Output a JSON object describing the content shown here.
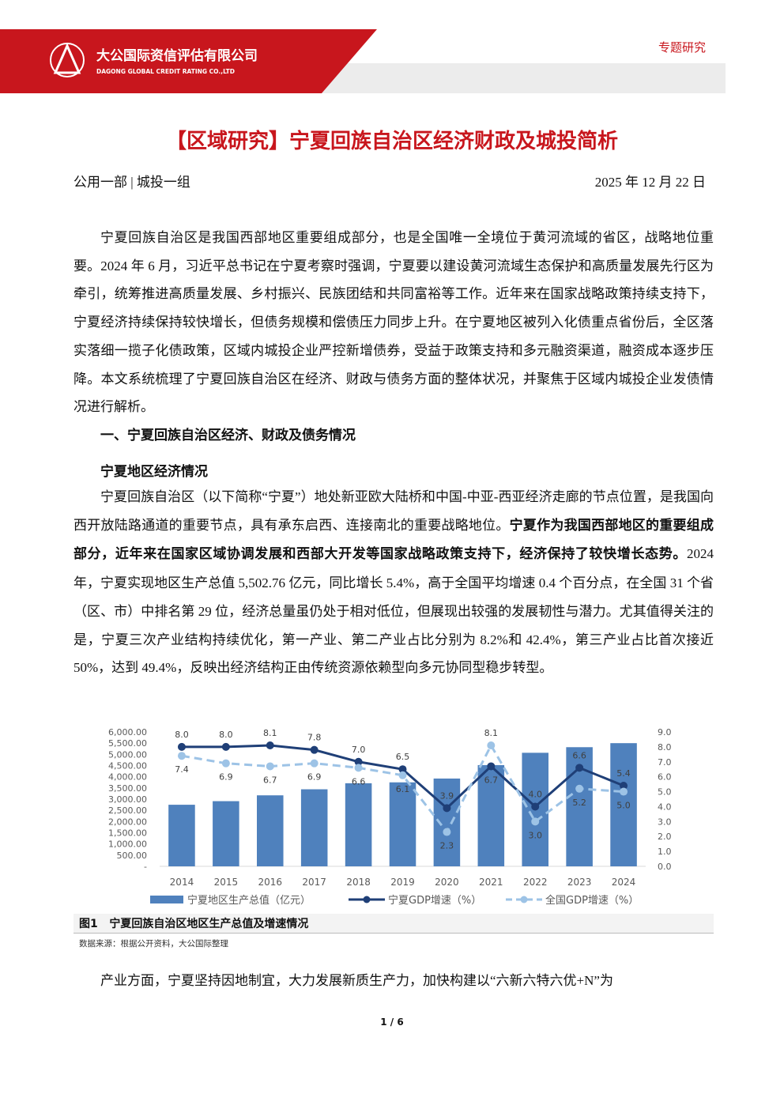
{
  "header": {
    "company_cn": "大公国际资信评估有限公司",
    "company_en": "DAGONG GLOBAL CREDIT RATING CO.,LTD",
    "tag": "专题研究"
  },
  "title": "【区域研究】宁夏回族自治区经济财政及城投简析",
  "meta": {
    "department": "公用一部 | 城投一组",
    "date": "2025 年 12 月 22 日"
  },
  "intro": "宁夏回族自治区是我国西部地区重要组成部分，也是全国唯一全境位于黄河流域的省区，战略地位重要。2024 年 6 月，习近平总书记在宁夏考察时强调，宁夏要以建设黄河流域生态保护和高质量发展先行区为牵引，统筹推进高质量发展、乡村振兴、民族团结和共同富裕等工作。近年来在国家战略政策持续支持下，宁夏经济持续保持较快增长，但债务规模和偿债压力同步上升。在宁夏地区被列入化债重点省份后，全区落实落细一揽子化债政策，区域内城投企业严控新增债券，受益于政策支持和多元融资渠道，融资成本逐步压降。本文系统梳理了宁夏回族自治区在经济、财政与债务方面的整体状况，并聚焦于区域内城投企业发债情况进行解析。",
  "section1": {
    "heading": "一、宁夏回族自治区经济、财政及债务情况",
    "subheading": "宁夏地区经济情况",
    "paragraph": [
      "宁夏回族自治区（以下简称“宁夏”）地处新亚欧大陆桥和中国-中亚-西亚经济走廊的节点位置，是我国向西开放陆路通道的重要节点，具有承东启西、连接南北的重要战略地位。",
      "宁夏作为我国西部地区的重要组成部分，近年来在国家区域协调发展和西部大开发等国家战略政策支持下，经济保持了较快增长态势。",
      "2024 年，宁夏实现地区生产总值 5,502.76 亿元，同比增长 5.4%，高于全国平均增速 0.4 个百分点，在全国 31 个省（区、市）中排名第 29 位，经济总量虽仍处于相对低位，但展现出较强的发展韧性与潜力。尤其值得关注的是，宁夏三次产业结构持续优化，第一产业、第二产业占比分别为 8.2%和 42.4%，第三产业占比首次接近 50%，达到 49.4%，反映出经济结构正由传统资源依赖型向多元协同型稳步转型。"
    ]
  },
  "chart_data": {
    "type": "combo",
    "categories": [
      "2014",
      "2015",
      "2016",
      "2017",
      "2018",
      "2019",
      "2020",
      "2021",
      "2022",
      "2023",
      "2024"
    ],
    "series": [
      {
        "name": "宁夏地区生产总值（亿元）",
        "type": "bar",
        "color": "#4f81bd",
        "values": [
          2750,
          2910,
          3170,
          3440,
          3710,
          3750,
          3920,
          4520,
          5070,
          5320,
          5500
        ]
      },
      {
        "name": "宁夏GDP增速（%）",
        "type": "line",
        "axis": "y2",
        "color": "#1f3f77",
        "dashed": false,
        "values": [
          8.0,
          8.0,
          8.1,
          7.8,
          7.0,
          6.5,
          3.9,
          6.7,
          4.0,
          6.6,
          5.4
        ],
        "value_labels": [
          "8.0",
          "8.0",
          "8.1",
          "7.8",
          "7.0",
          "6.5",
          "3.9",
          "6.7",
          "4.0",
          "6.6",
          "5.4"
        ]
      },
      {
        "name": "全国GDP增速（%）",
        "type": "line",
        "axis": "y2",
        "color": "#9dc3e6",
        "dashed": true,
        "values": [
          7.4,
          6.9,
          6.7,
          6.9,
          6.6,
          6.1,
          2.3,
          8.1,
          3.0,
          5.2,
          5.0
        ],
        "value_labels": [
          "7.4",
          "6.9",
          "6.7",
          "6.9",
          "6.6",
          "6.1",
          "2.3",
          "8.1",
          "3.0",
          "5.2",
          "5.0"
        ]
      }
    ],
    "ylim": [
      0,
      6000
    ],
    "yticks": [
      {
        "value": 0,
        "label": "-"
      },
      {
        "value": 500,
        "label": "500.00"
      },
      {
        "value": 1000,
        "label": "1,000.00"
      },
      {
        "value": 1500,
        "label": "1,500.00"
      },
      {
        "value": 2000,
        "label": "2,000.00"
      },
      {
        "value": 2500,
        "label": "2,500.00"
      },
      {
        "value": 3000,
        "label": "3,000.00"
      },
      {
        "value": 3500,
        "label": "3,500.00"
      },
      {
        "value": 4000,
        "label": "4,000.00"
      },
      {
        "value": 4500,
        "label": "4,500.00"
      },
      {
        "value": 5000,
        "label": "5,000.00"
      },
      {
        "value": 5500,
        "label": "5,500.00"
      },
      {
        "value": 6000,
        "label": "6,000.00"
      }
    ],
    "y2lim": [
      0,
      9
    ],
    "y2ticks": [
      {
        "value": 0,
        "label": "0.0"
      },
      {
        "value": 1,
        "label": "1.0"
      },
      {
        "value": 2,
        "label": "2.0"
      },
      {
        "value": 3,
        "label": "3.0"
      },
      {
        "value": 4,
        "label": "4.0"
      },
      {
        "value": 5,
        "label": "5.0"
      },
      {
        "value": 6,
        "label": "6.0"
      },
      {
        "value": 7,
        "label": "7.0"
      },
      {
        "value": 8,
        "label": "8.0"
      },
      {
        "value": 9,
        "label": "9.0"
      }
    ],
    "grid": false
  },
  "figure": {
    "caption": "图1   宁夏回族自治区地区生产总值及增速情况",
    "source": "数据来源：根据公开资料，大公国际整理"
  },
  "closing": "产业方面，宁夏坚持因地制宜，大力发展新质生产力，加快构建以“六新六特六优+N”为",
  "footer": {
    "page": "1 / 6"
  }
}
